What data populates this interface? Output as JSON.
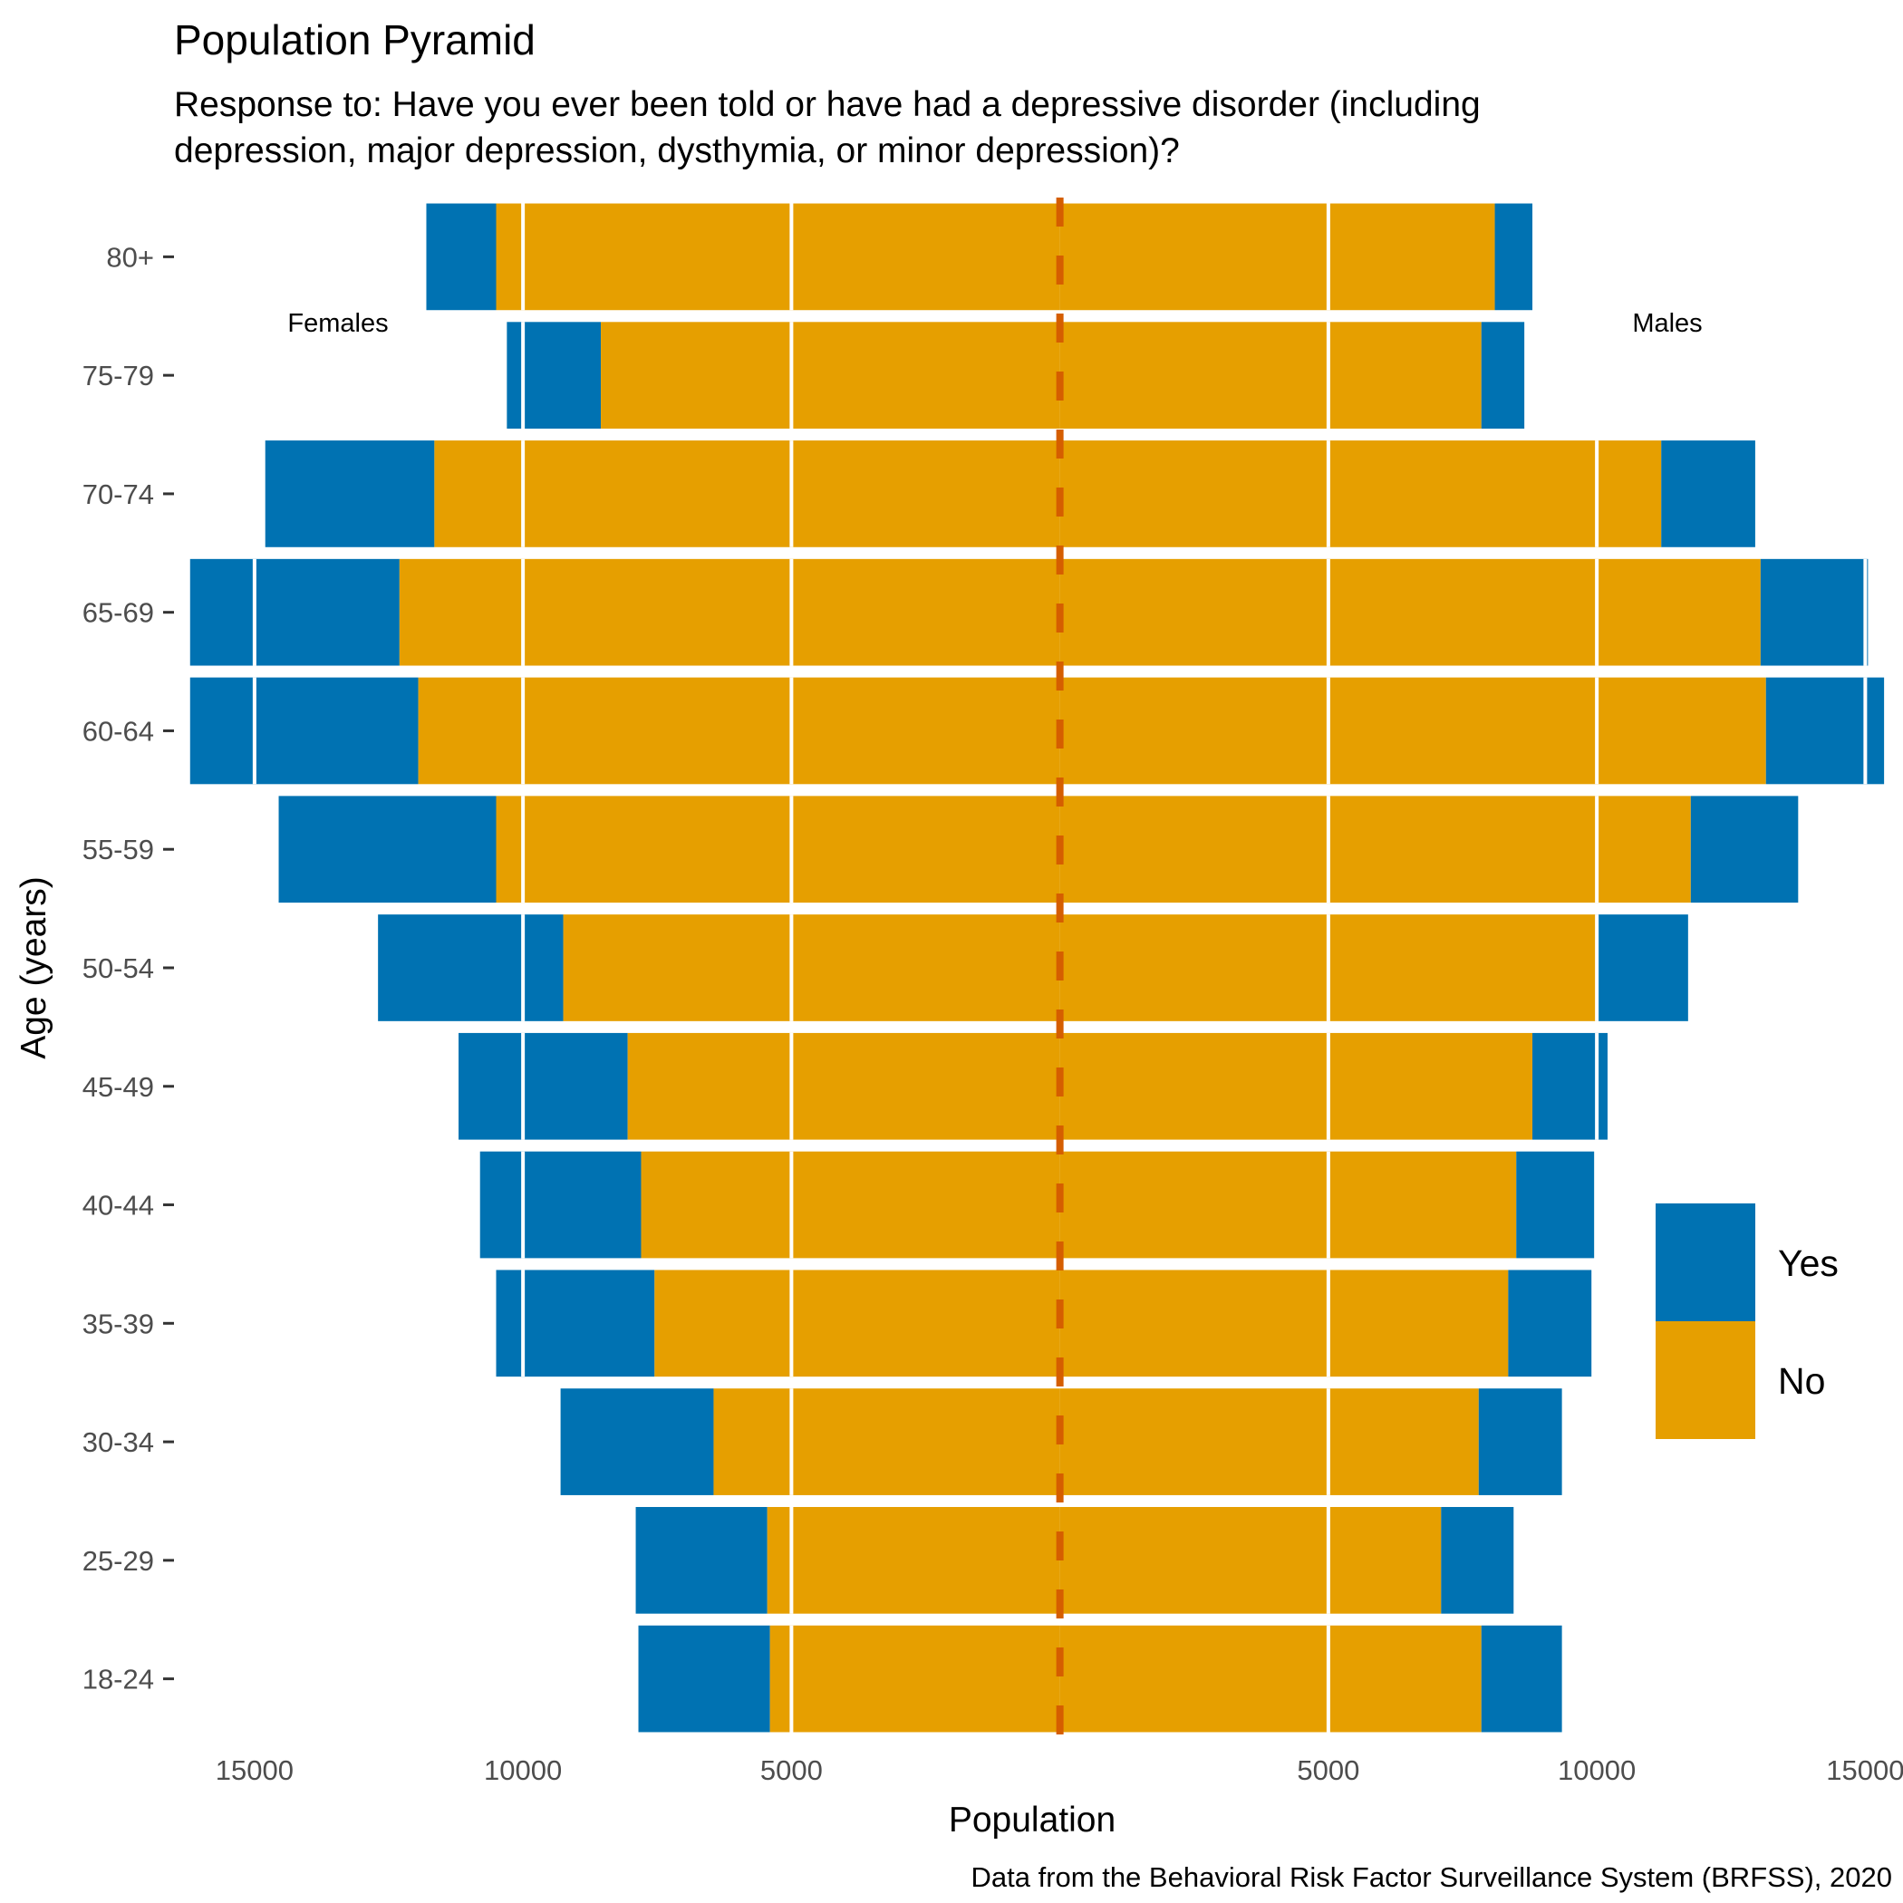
{
  "chart_data": {
    "type": "bar",
    "orientation": "horizontal",
    "title": "Population Pyramid",
    "subtitle_lines": [
      "Response to: Have you ever been told or have had a depressive disorder (including",
      "depression, major depression, dysthymia, or minor depression)?"
    ],
    "xlabel": "Population",
    "ylabel": "Age (years)",
    "caption": "Data from the Behavioral Risk Factor Surveillance System (BRFSS), 2020",
    "xlim": [
      -16500,
      15500
    ],
    "x_ticks": [
      -15000,
      -10000,
      -5000,
      5000,
      10000,
      15000
    ],
    "x_tick_labels": [
      "15000",
      "10000",
      "5000",
      "5000",
      "10000",
      "15000"
    ],
    "grid": false,
    "legend_position": "right",
    "annotations": [
      {
        "text": "Females",
        "side": "left"
      },
      {
        "text": "Males",
        "side": "right"
      }
    ],
    "categories": [
      "80+",
      "75-79",
      "70-74",
      "65-69",
      "60-64",
      "55-59",
      "50-54",
      "45-49",
      "40-44",
      "35-39",
      "30-34",
      "25-29",
      "18-24"
    ],
    "series": [
      {
        "name": "Yes",
        "color": "#0072B2",
        "female": [
          1300,
          1750,
          3150,
          3900,
          4250,
          4050,
          3450,
          3150,
          3000,
          2950,
          2850,
          2450,
          2450
        ],
        "male": [
          700,
          800,
          1750,
          2000,
          2200,
          2000,
          1700,
          1400,
          1450,
          1550,
          1550,
          1350,
          1500
        ]
      },
      {
        "name": "No",
        "color": "#E69F00",
        "female": [
          10500,
          8550,
          11650,
          12300,
          11950,
          10500,
          9250,
          8050,
          7800,
          7550,
          6450,
          5450,
          5400
        ],
        "male": [
          8100,
          7850,
          11200,
          13050,
          13150,
          11750,
          10000,
          8800,
          8500,
          8350,
          7800,
          7100,
          7850
        ]
      }
    ],
    "legend": [
      "Yes",
      "No"
    ],
    "center_line": {
      "color": "#D55E00",
      "style": "dashed"
    }
  }
}
